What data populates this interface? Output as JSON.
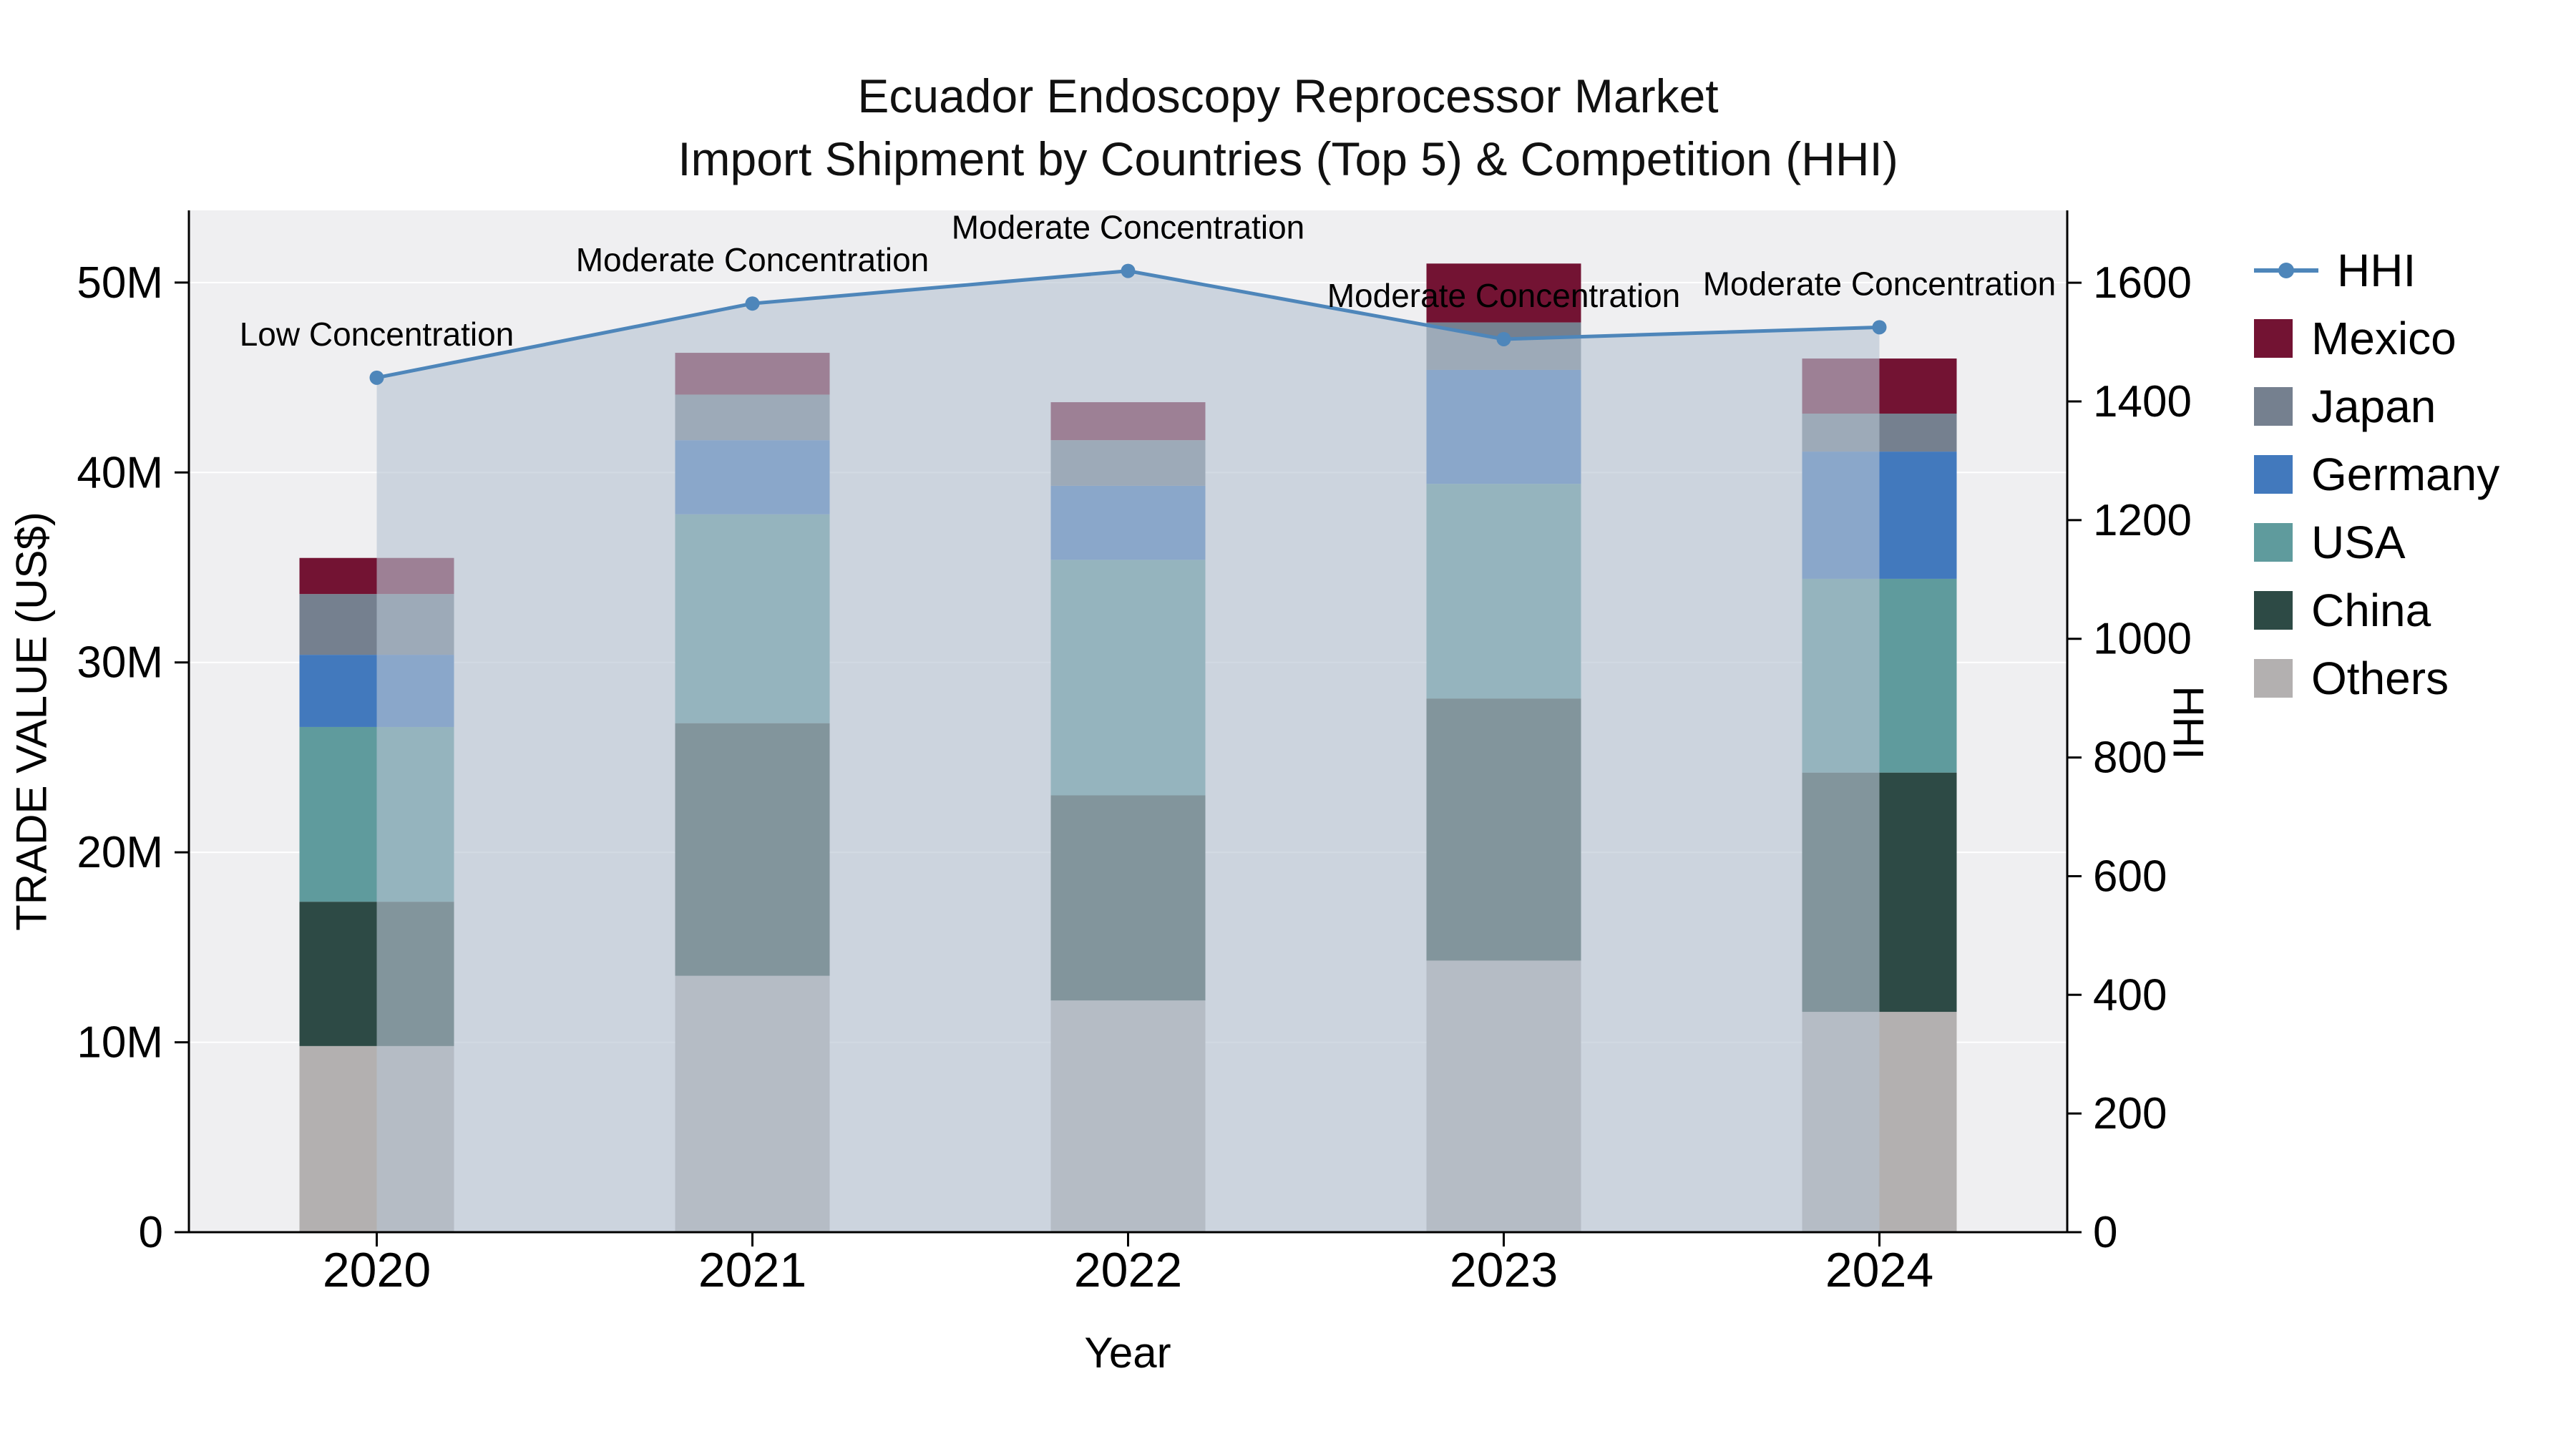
{
  "chart_data": {
    "type": "bar+line",
    "title": "Ecuador Endoscopy Reprocessor Market",
    "subtitle": "Import Shipment by Countries (Top 5) & Competition (HHI)",
    "xlabel": "Year",
    "ylabel_left": "TRADE VALUE (US$)",
    "ylabel_right": "HHI",
    "unit_left": "US$ millions",
    "categories": [
      "2020",
      "2021",
      "2022",
      "2023",
      "2024"
    ],
    "bar_series": [
      {
        "name": "Others",
        "color": "#b3b0b0",
        "values": [
          9.8,
          13.5,
          12.2,
          14.3,
          11.6
        ]
      },
      {
        "name": "China",
        "color": "#2d4a45",
        "values": [
          7.6,
          13.3,
          10.8,
          13.8,
          12.6
        ]
      },
      {
        "name": "USA",
        "color": "#5f9b9d",
        "values": [
          9.2,
          11.0,
          12.4,
          11.3,
          10.2
        ]
      },
      {
        "name": "Germany",
        "color": "#4279bd",
        "values": [
          3.8,
          3.9,
          3.9,
          6.0,
          6.7
        ]
      },
      {
        "name": "Japan",
        "color": "#75808f",
        "values": [
          3.2,
          2.4,
          2.4,
          2.5,
          2.0
        ]
      },
      {
        "name": "Mexico",
        "color": "#731333",
        "values": [
          1.9,
          2.2,
          2.0,
          3.1,
          2.9
        ]
      }
    ],
    "line_series": {
      "name": "HHI",
      "color": "#4e86ba",
      "values": [
        1440,
        1565,
        1620,
        1505,
        1525
      ]
    },
    "annotations": [
      "Low Concentration",
      "Moderate Concentration",
      "Moderate Concentration",
      "Moderate Concentration",
      "Moderate Concentration"
    ],
    "left_axis": {
      "ticks": [
        0,
        10,
        20,
        30,
        40,
        50
      ],
      "labels": [
        "0",
        "10M",
        "20M",
        "30M",
        "40M",
        "50M"
      ],
      "max": 53.8
    },
    "right_axis": {
      "ticks": [
        0,
        200,
        400,
        600,
        800,
        1000,
        1200,
        1400,
        1600
      ],
      "max": 1722
    },
    "legend": [
      {
        "label": "HHI",
        "type": "line",
        "color": "#4e86ba"
      },
      {
        "label": "Mexico",
        "type": "square",
        "color": "#731333"
      },
      {
        "label": "Japan",
        "type": "square",
        "color": "#75808f"
      },
      {
        "label": "Germany",
        "type": "square",
        "color": "#4279bd"
      },
      {
        "label": "USA",
        "type": "square",
        "color": "#5f9b9d"
      },
      {
        "label": "China",
        "type": "square",
        "color": "#2d4a45"
      },
      {
        "label": "Others",
        "type": "square",
        "color": "#b3b0b0"
      }
    ],
    "colors": {
      "plot_bg": "#efeff1",
      "grid": "#ffffff",
      "area": "rgba(183,196,210,0.62)",
      "axis": "#000000"
    }
  }
}
